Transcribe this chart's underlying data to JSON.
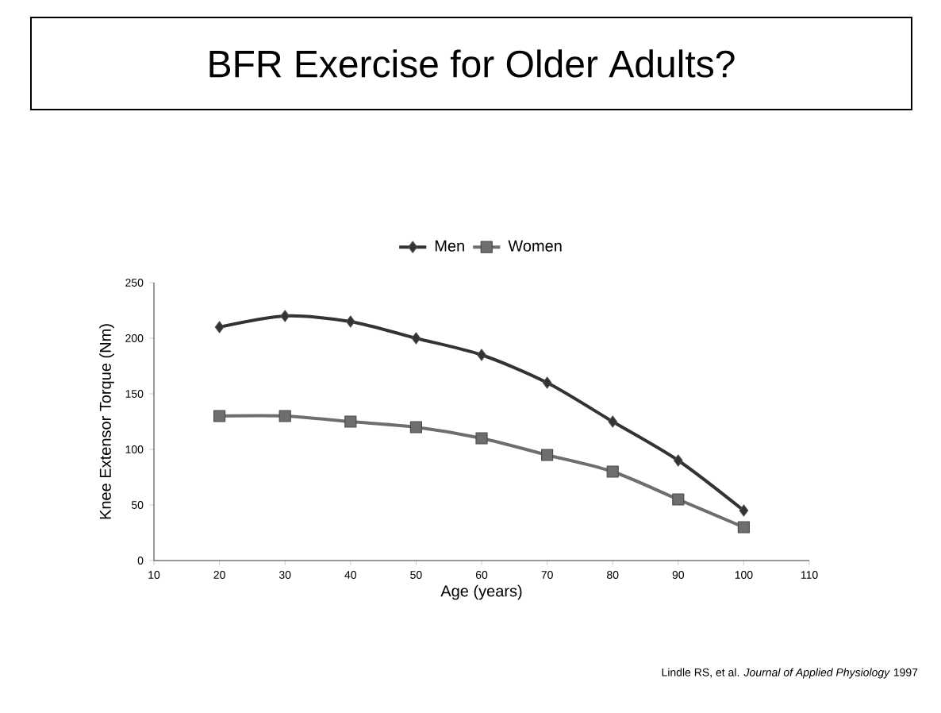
{
  "chart_data": {
    "type": "line",
    "title": "BFR Exercise for Older Adults?",
    "xlabel": "Age (years)",
    "ylabel": "Knee Extensor Torque (Nm)",
    "x": [
      20,
      30,
      40,
      50,
      60,
      70,
      80,
      90,
      100
    ],
    "series": [
      {
        "name": "Men",
        "color": "#333333",
        "marker": "diamond",
        "values": [
          210,
          220,
          215,
          200,
          185,
          160,
          125,
          90,
          45
        ]
      },
      {
        "name": "Women",
        "color": "#6e6e6e",
        "marker": "square",
        "values": [
          130,
          130,
          125,
          120,
          110,
          95,
          80,
          55,
          30
        ]
      }
    ],
    "xlim": [
      10,
      110
    ],
    "xticks": [
      10,
      20,
      30,
      40,
      50,
      60,
      70,
      80,
      90,
      100,
      110
    ],
    "ylim": [
      0,
      250
    ],
    "yticks": [
      0,
      50,
      100,
      150,
      200,
      250
    ],
    "grid": false,
    "legend": "top",
    "line_style": "solid",
    "annotations": [
      "Lindle RS, et al. *Journal of Applied Physiology* 1997"
    ]
  }
}
